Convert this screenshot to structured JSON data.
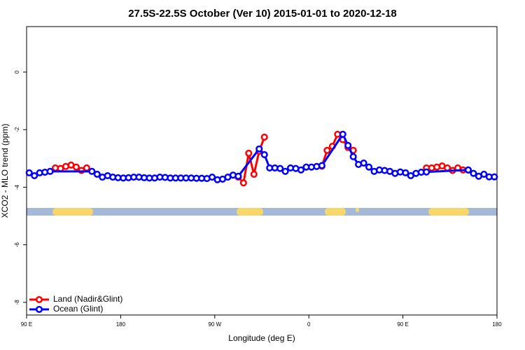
{
  "chart_data": {
    "type": "line",
    "title": "27.5S-22.5S October (Ver 10)   2015-01-01 to 2020-12-18",
    "x_label": "Longitude (deg E)",
    "y_label": "XCO2 - MLO trend (ppm)",
    "xlim": [
      90,
      540
    ],
    "xticks": [
      {
        "value": 90,
        "label": "90 E"
      },
      {
        "value": 180,
        "label": "180"
      },
      {
        "value": 270,
        "label": "90 W"
      },
      {
        "value": 360,
        "label": "0"
      },
      {
        "value": 450,
        "label": "90 E"
      },
      {
        "value": 540,
        "label": "180"
      }
    ],
    "ylim": [
      -8.44,
      1.58
    ],
    "yticks": [
      -8,
      -6,
      -4,
      -2,
      0
    ],
    "legend": "bottom-left",
    "series": [
      {
        "name": "Land (Nadir&Glint)",
        "color": "#ff0000",
        "x": [
          117.5,
          122.5,
          127.5,
          132.5,
          137.5,
          142.5,
          147.5,
          250,
          292.5,
          297.5,
          302.5,
          307.5,
          312.5,
          317.5,
          340,
          372.5,
          377.5,
          382.5,
          387.5,
          392.5,
          397.5,
          402.5,
          450,
          472.5,
          477.5,
          482.5,
          487.5,
          492.5,
          497.5,
          502.5,
          507.5,
          512.5
        ],
        "values": [
          -3.33,
          -3.35,
          -3.28,
          -3.23,
          -3.3,
          -3.42,
          -3.33,
          null,
          -3.65,
          -3.85,
          -2.82,
          -3.55,
          -2.75,
          -2.26,
          null,
          -3.27,
          -2.72,
          -2.58,
          -2.16,
          -2.35,
          -2.62,
          -2.72,
          null,
          -3.33,
          -3.33,
          -3.3,
          -3.26,
          -3.33,
          -3.42,
          -3.33,
          -3.4,
          -3.4
        ]
      },
      {
        "name": "Ocean (Glint)",
        "color": "#0000ff",
        "x": [
          92.5,
          97.5,
          102.5,
          107.5,
          112.5,
          152.5,
          157.5,
          162.5,
          167.5,
          172.5,
          177.5,
          182.5,
          187.5,
          192.5,
          197.5,
          202.5,
          207.5,
          212.5,
          217.5,
          222.5,
          227.5,
          232.5,
          237.5,
          242.5,
          247.5,
          252.5,
          257.5,
          262.5,
          267.5,
          272.5,
          277.5,
          282.5,
          287.5,
          292.5,
          312.5,
          317.5,
          322.5,
          327.5,
          332.5,
          337.5,
          342.5,
          347.5,
          352.5,
          357.5,
          362.5,
          367.5,
          372.5,
          392.5,
          397.5,
          402.5,
          407.5,
          412.5,
          417.5,
          422.5,
          427.5,
          432.5,
          437.5,
          442.5,
          447.5,
          452.5,
          457.5,
          462.5,
          467.5,
          472.5,
          512.5,
          517.5,
          522.5,
          527.5,
          532.5,
          537.5
        ],
        "values": [
          -3.5,
          -3.6,
          -3.5,
          -3.48,
          -3.45,
          -3.45,
          -3.55,
          -3.65,
          -3.6,
          -3.65,
          -3.67,
          -3.68,
          -3.67,
          -3.65,
          -3.65,
          -3.67,
          -3.68,
          -3.68,
          -3.65,
          -3.66,
          -3.68,
          -3.68,
          -3.68,
          -3.68,
          -3.68,
          -3.69,
          -3.69,
          -3.7,
          -3.65,
          -3.74,
          -3.72,
          -3.65,
          -3.58,
          -3.62,
          -2.67,
          -2.87,
          -3.33,
          -3.33,
          -3.35,
          -3.45,
          -3.33,
          -3.35,
          -3.4,
          -3.3,
          -3.3,
          -3.28,
          -3.25,
          -2.16,
          -2.55,
          -2.94,
          -3.21,
          -3.16,
          -3.3,
          -3.45,
          -3.4,
          -3.42,
          -3.45,
          -3.52,
          -3.47,
          -3.5,
          -3.6,
          -3.52,
          -3.48,
          -3.47,
          -3.4,
          -3.52,
          -3.62,
          -3.55,
          -3.64,
          -3.64
        ]
      }
    ]
  }
}
